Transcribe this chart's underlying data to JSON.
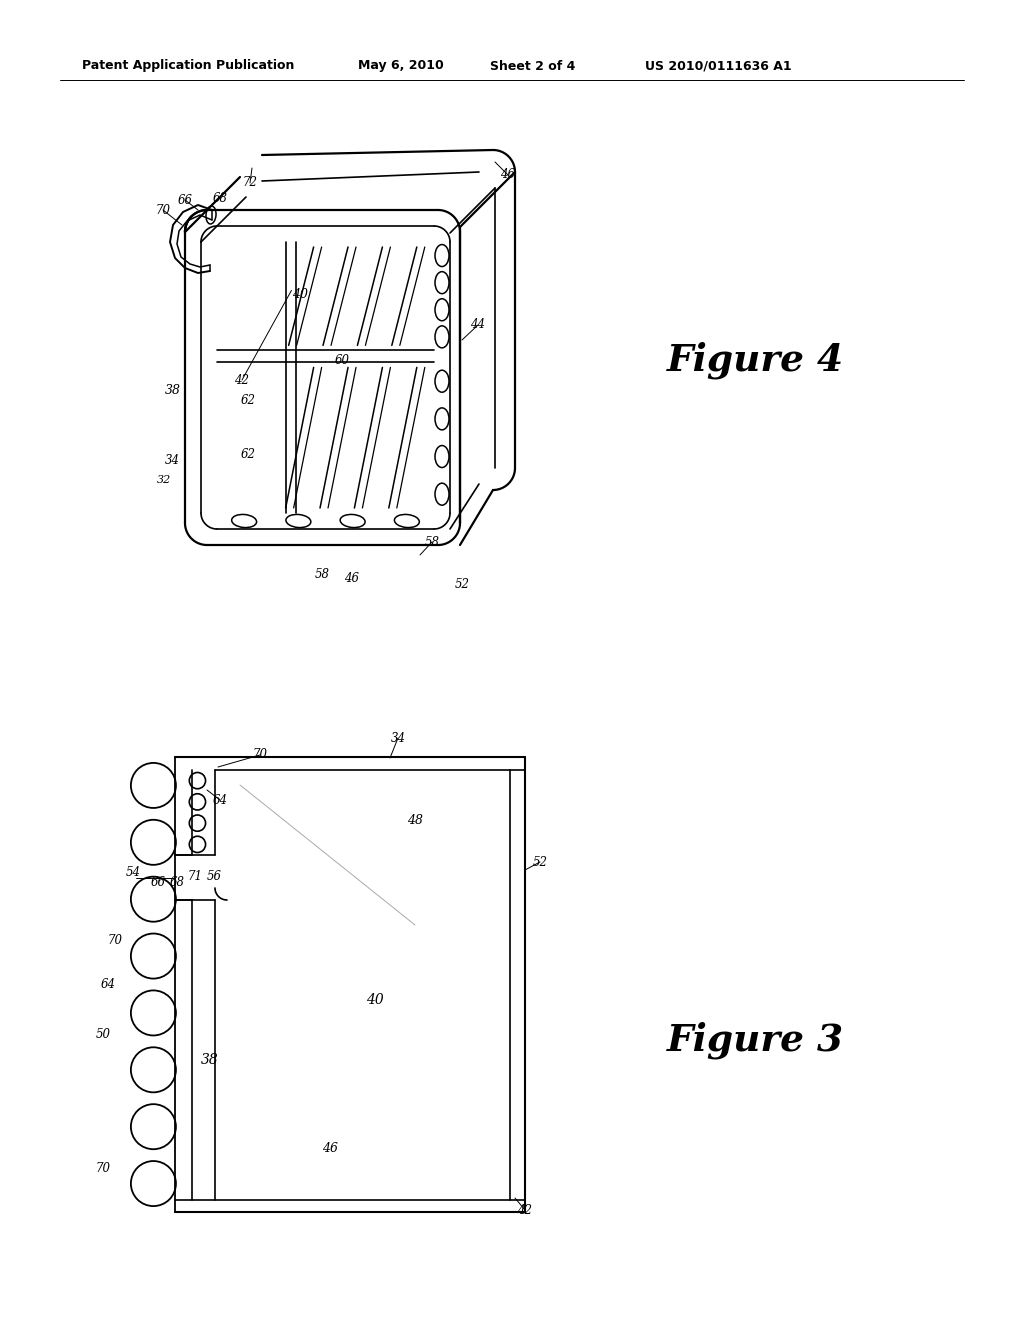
{
  "bg_color": "#ffffff",
  "line_color": "#000000",
  "header_text": "Patent Application Publication",
  "header_date": "May 6, 2010",
  "header_sheet": "Sheet 2 of 4",
  "header_patent": "US 2010/0111636 A1",
  "figure4_label": "Figure 4",
  "figure3_label": "Figure 3"
}
